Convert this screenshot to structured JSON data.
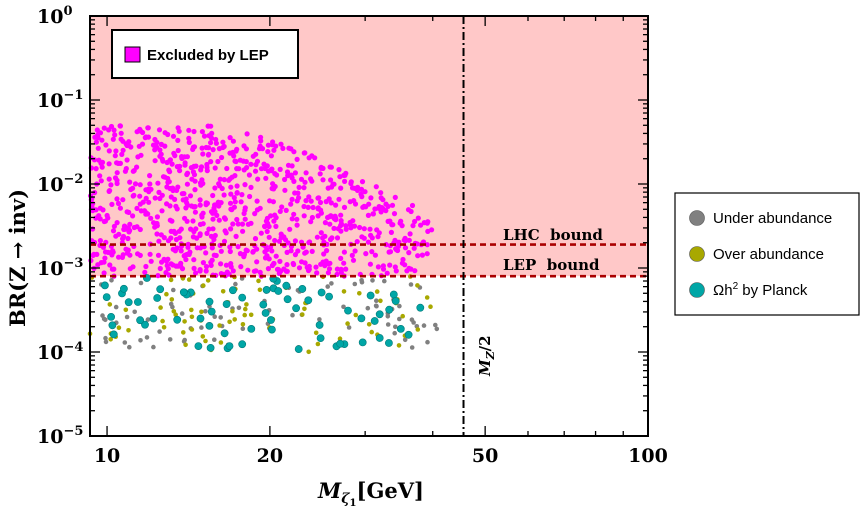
{
  "chart_data": {
    "type": "scatter",
    "xscale": "log",
    "yscale": "log",
    "xlim": [
      9.3,
      100
    ],
    "ylim": [
      1e-05,
      1
    ],
    "x_ticks": [
      {
        "value": 10,
        "label": "10"
      },
      {
        "value": 20,
        "label": "20"
      },
      {
        "value": 50,
        "label": "50"
      },
      {
        "value": 100,
        "label": "100"
      }
    ],
    "y_ticks": [
      {
        "value": 1,
        "base": "10",
        "exp": "0"
      },
      {
        "value": 0.1,
        "base": "10",
        "exp": "−1"
      },
      {
        "value": 0.01,
        "base": "10",
        "exp": "−2"
      },
      {
        "value": 0.001,
        "base": "10",
        "exp": "−3"
      },
      {
        "value": 0.0001,
        "base": "10",
        "exp": "−4"
      },
      {
        "value": 1e-05,
        "base": "10",
        "exp": "−5"
      }
    ],
    "xlabel": {
      "main": "M",
      "sub": "ζ",
      "subsub": "1",
      "unit": "[GeV]"
    },
    "ylabel": "BR(Z → inv)",
    "excluded_region": {
      "label": "Excluded by LEP",
      "y_min": 0.0008,
      "color": "#ffc8c8",
      "marker_color": "#ff00ff"
    },
    "lines": [
      {
        "name": "LHC bound",
        "label": "LHC  bound",
        "y": 0.0019,
        "color": "#aa0000",
        "style": "dashed"
      },
      {
        "name": "LEP bound",
        "label": "LEP  bound",
        "y": 0.0008,
        "color": "#aa0000",
        "style": "dashed"
      },
      {
        "name": "MZ/2",
        "label": "M",
        "label_sub": "Z",
        "label_suffix": "/2",
        "x": 45.6,
        "color": "#000000",
        "style": "dashdot"
      }
    ],
    "series": [
      {
        "name": "Excluded by LEP",
        "color": "#ff00ff",
        "x_range": [
          9.3,
          40
        ],
        "y_range": [
          0.0008,
          0.05
        ],
        "count": 900,
        "size": 2.6
      },
      {
        "name": "Under abundance",
        "color": "#808080",
        "x_range": [
          9.3,
          41
        ],
        "y_range": [
          0.00011,
          0.0008
        ],
        "count": 90,
        "size": 2.3
      },
      {
        "name": "Over abundance",
        "color": "#a8a800",
        "x_range": [
          9.3,
          40
        ],
        "y_range": [
          0.0001,
          0.0008
        ],
        "count": 80,
        "size": 2.3
      },
      {
        "name": "Ωh² by Planck",
        "color": "#00a6a6",
        "x_range": [
          9.3,
          38
        ],
        "y_range": [
          0.0001,
          0.0008
        ],
        "count": 70,
        "size": 3.6
      }
    ],
    "legend": {
      "placement": "right",
      "entries": [
        {
          "label": "Under abundance",
          "color": "#808080"
        },
        {
          "label": "Over abundance",
          "color": "#a8a800"
        },
        {
          "label": "Ωh",
          "sup": "2",
          "suffix": " by Planck",
          "color": "#00a6a6"
        }
      ]
    }
  }
}
